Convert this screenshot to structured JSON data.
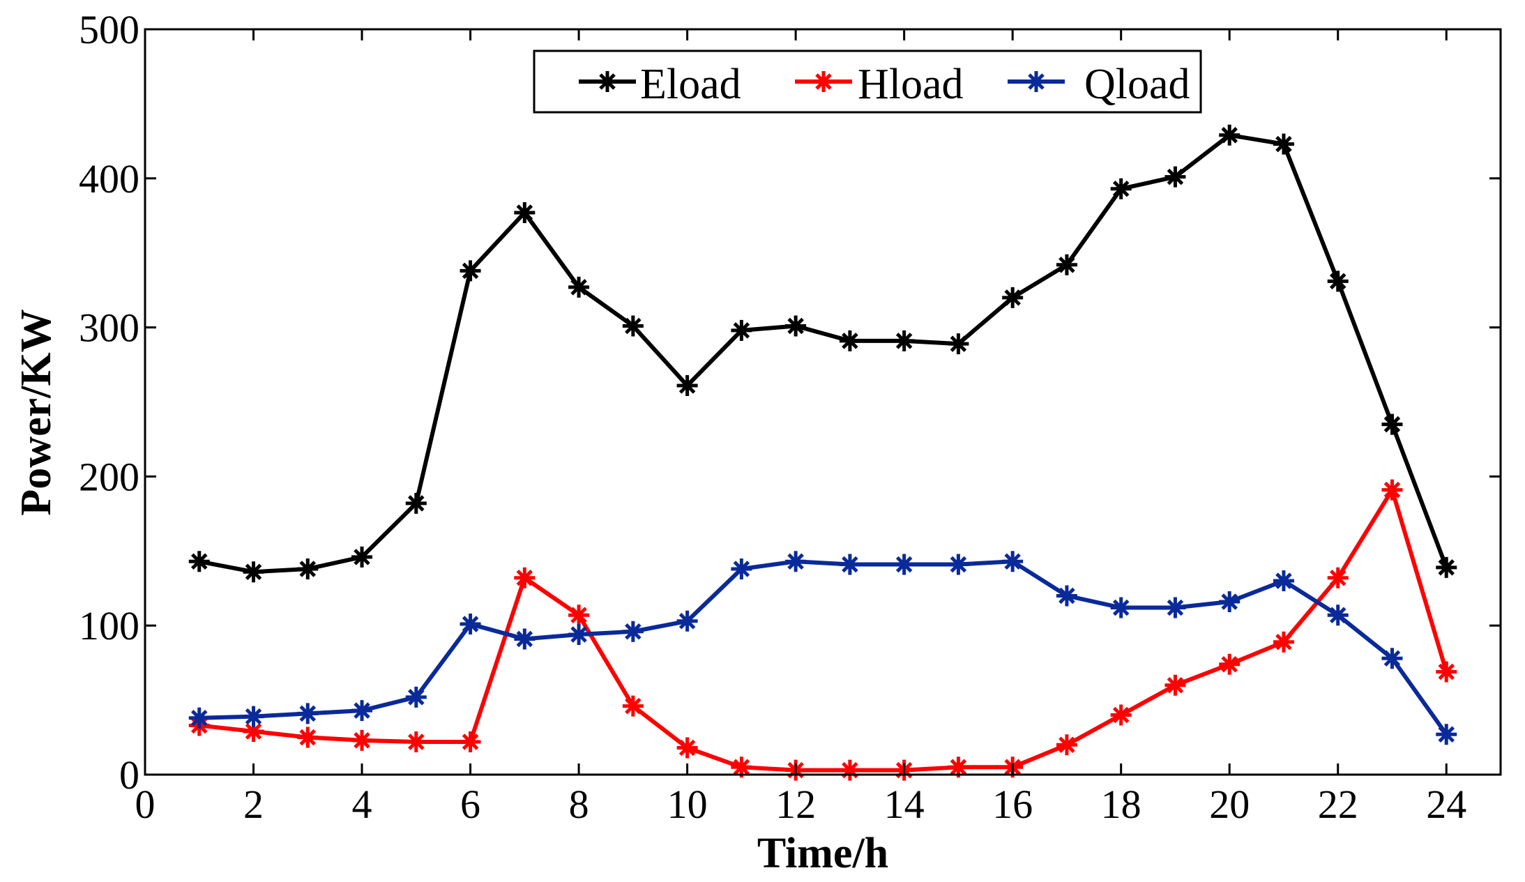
{
  "chart_data": {
    "type": "line",
    "title": "",
    "xlabel": "Time/h",
    "ylabel": "Power/KW",
    "xlim": [
      0,
      25
    ],
    "ylim": [
      0,
      500
    ],
    "xticks": [
      0,
      2,
      4,
      6,
      8,
      10,
      12,
      14,
      16,
      18,
      20,
      22,
      24
    ],
    "yticks": [
      0,
      100,
      200,
      300,
      400,
      500
    ],
    "grid": false,
    "legend_position": "top-center",
    "x": [
      1,
      2,
      3,
      4,
      5,
      6,
      7,
      8,
      9,
      10,
      11,
      12,
      13,
      14,
      15,
      16,
      17,
      18,
      19,
      20,
      21,
      22,
      23,
      24
    ],
    "series": [
      {
        "name": "Eload",
        "color": "#000000",
        "values": [
          143,
          136,
          138,
          146,
          182,
          338,
          377,
          327,
          301,
          261,
          298,
          301,
          291,
          291,
          289,
          320,
          342,
          393,
          401,
          429,
          423,
          331,
          235,
          139
        ]
      },
      {
        "name": "Hload",
        "color": "#ff0000",
        "values": [
          33,
          29,
          25,
          23,
          22,
          22,
          132,
          107,
          46,
          18,
          5,
          3,
          3,
          3,
          5,
          5,
          20,
          40,
          60,
          74,
          89,
          132,
          191,
          69
        ]
      },
      {
        "name": "Qload",
        "color": "#0a2a9a",
        "values": [
          38,
          39,
          41,
          43,
          52,
          101,
          91,
          94,
          96,
          103,
          138,
          143,
          141,
          141,
          141,
          143,
          120,
          112,
          112,
          116,
          130,
          107,
          78,
          27
        ]
      }
    ]
  }
}
